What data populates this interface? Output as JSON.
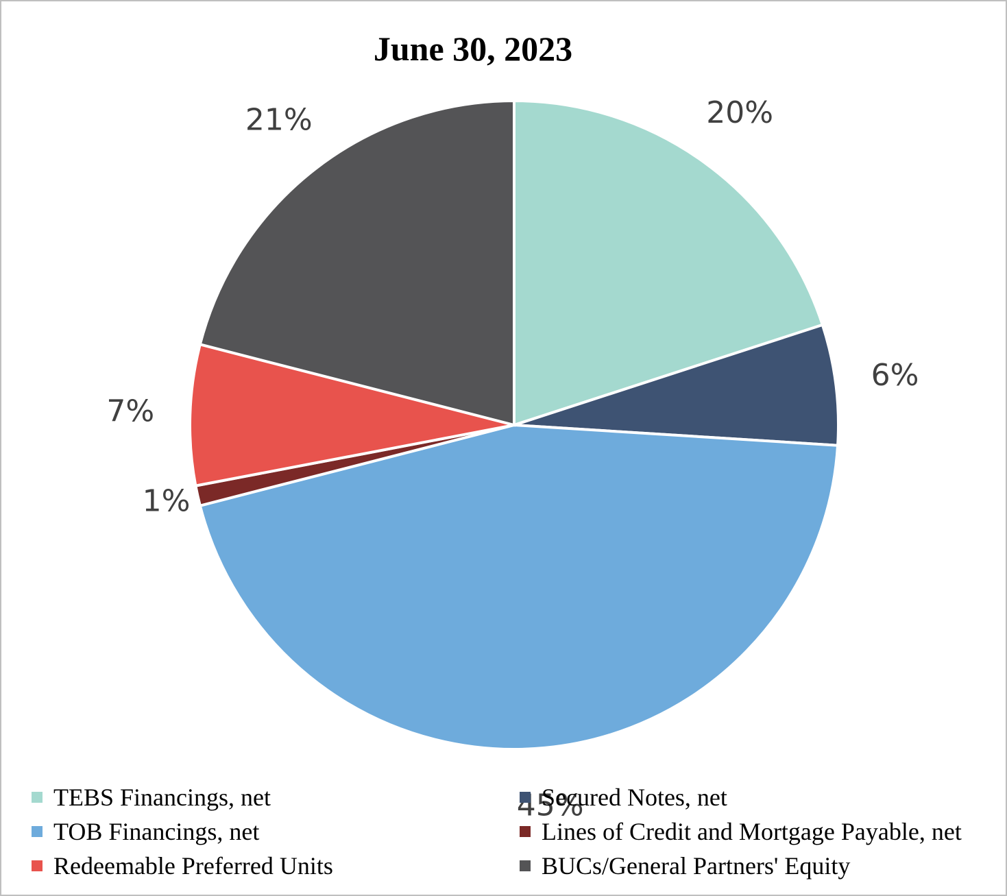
{
  "chart_data": {
    "type": "pie",
    "title": "June 30, 2023",
    "slices": [
      {
        "name": "TEBS Financings, net",
        "value": 20,
        "label": "20%",
        "color": "#a4d9cf"
      },
      {
        "name": "Secured Notes, net",
        "value": 6,
        "label": "6%",
        "color": "#3e5373"
      },
      {
        "name": "TOB Financings, net",
        "value": 45,
        "label": "45%",
        "color": "#6eabdc"
      },
      {
        "name": "Lines of Credit and Mortgage Payable, net",
        "value": 1,
        "label": "1%",
        "color": "#7b2927"
      },
      {
        "name": "Redeemable Preferred Units",
        "value": 7,
        "label": "7%",
        "color": "#e8534d"
      },
      {
        "name": "BUCs/General Partners' Equity",
        "value": 21,
        "label": "21%",
        "color": "#545456"
      }
    ],
    "legend_position": "bottom",
    "start_angle": "12 o'clock",
    "direction": "clockwise"
  }
}
